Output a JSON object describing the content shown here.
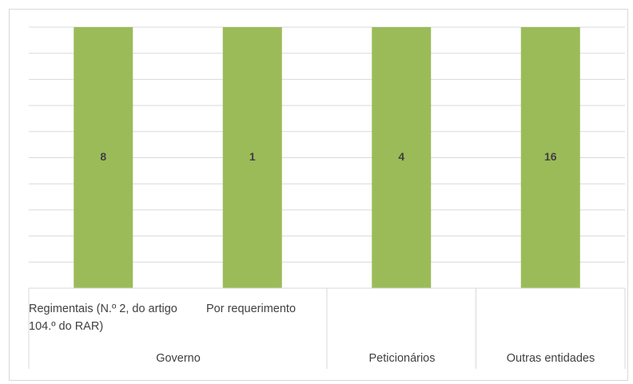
{
  "chart_data": {
    "type": "bar",
    "title": "",
    "xlabel": "",
    "ylabel": "",
    "categories": [
      "Regimentais (N.º 2, do artigo 104.º do RAR)",
      "Por requerimento",
      "",
      ""
    ],
    "groups": [
      {
        "label": "Governo",
        "span": 2
      },
      {
        "label": "Peticionários",
        "span": 1
      },
      {
        "label": "Outras entidades",
        "span": 1
      }
    ],
    "values": [
      8,
      1,
      4,
      16
    ],
    "data_labels": [
      "8",
      "1",
      "4",
      "16"
    ],
    "bar_color": "#9bbb59",
    "grid": true,
    "legend": "none"
  }
}
